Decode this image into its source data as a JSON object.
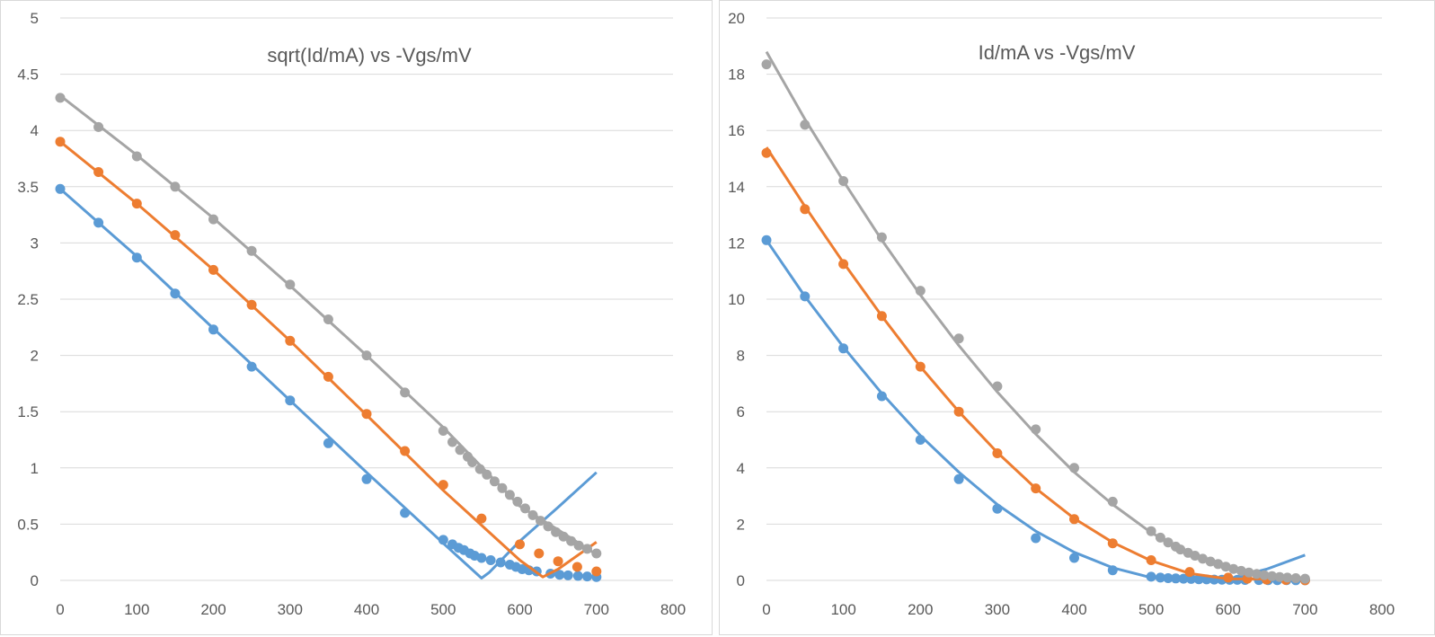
{
  "colors": {
    "blue": "#5b9bd5",
    "orange": "#ed7d31",
    "gray": "#a5a5a5",
    "grid": "#d9d9d9",
    "text": "#595959"
  },
  "chart_data": [
    {
      "type": "scatter",
      "title": "sqrt(Id/mA) vs -Vgs/mV",
      "xlim": [
        0,
        800
      ],
      "ylim": [
        0,
        5
      ],
      "x_ticks": [
        "0",
        "100",
        "200",
        "300",
        "400",
        "500",
        "600",
        "700",
        "800"
      ],
      "y_ticks": [
        "0",
        "0.5",
        "1",
        "1.5",
        "2",
        "2.5",
        "3",
        "3.5",
        "4",
        "4.5",
        "5"
      ],
      "grid": true,
      "legend": "none",
      "series": [
        {
          "color": "blue",
          "points": [
            [
              0,
              3.48
            ],
            [
              50,
              3.18
            ],
            [
              100,
              2.87
            ],
            [
              150,
              2.55
            ],
            [
              200,
              2.23
            ],
            [
              250,
              1.9
            ],
            [
              300,
              1.6
            ],
            [
              350,
              1.22
            ],
            [
              400,
              0.9
            ],
            [
              450,
              0.6
            ],
            [
              500,
              0.36
            ],
            [
              512,
              0.32
            ],
            [
              520,
              0.29
            ],
            [
              527,
              0.27
            ],
            [
              535,
              0.24
            ],
            [
              541,
              0.22
            ],
            [
              550,
              0.2
            ],
            [
              562,
              0.18
            ],
            [
              575,
              0.16
            ],
            [
              587,
              0.14
            ],
            [
              595,
              0.12
            ],
            [
              603,
              0.1
            ],
            [
              612,
              0.09
            ],
            [
              622,
              0.08
            ],
            [
              640,
              0.06
            ],
            [
              652,
              0.05
            ],
            [
              663,
              0.045
            ],
            [
              676,
              0.04
            ],
            [
              688,
              0.035
            ],
            [
              700,
              0.03
            ]
          ],
          "fit": [
            [
              0,
              3.48
            ],
            [
              100,
              2.88
            ],
            [
              200,
              2.24
            ],
            [
              300,
              1.6
            ],
            [
              400,
              0.96
            ],
            [
              500,
              0.33
            ],
            [
              550,
              0.02
            ],
            [
              560,
              0.07
            ],
            [
              600,
              0.35
            ],
            [
              650,
              0.65
            ],
            [
              700,
              0.96
            ]
          ]
        },
        {
          "color": "orange",
          "points": [
            [
              0,
              3.9
            ],
            [
              50,
              3.63
            ],
            [
              100,
              3.35
            ],
            [
              150,
              3.07
            ],
            [
              200,
              2.76
            ],
            [
              250,
              2.45
            ],
            [
              300,
              2.13
            ],
            [
              350,
              1.81
            ],
            [
              400,
              1.48
            ],
            [
              450,
              1.15
            ],
            [
              500,
              0.85
            ],
            [
              550,
              0.55
            ],
            [
              600,
              0.32
            ],
            [
              625,
              0.24
            ],
            [
              650,
              0.17
            ],
            [
              675,
              0.12
            ],
            [
              700,
              0.08
            ]
          ],
          "fit": [
            [
              0,
              3.9
            ],
            [
              100,
              3.35
            ],
            [
              200,
              2.76
            ],
            [
              300,
              2.13
            ],
            [
              400,
              1.47
            ],
            [
              500,
              0.8
            ],
            [
              600,
              0.18
            ],
            [
              630,
              0.03
            ],
            [
              650,
              0.1
            ],
            [
              700,
              0.34
            ]
          ]
        },
        {
          "color": "gray",
          "points": [
            [
              0,
              4.29
            ],
            [
              50,
              4.03
            ],
            [
              100,
              3.77
            ],
            [
              150,
              3.5
            ],
            [
              200,
              3.21
            ],
            [
              250,
              2.93
            ],
            [
              300,
              2.63
            ],
            [
              350,
              2.32
            ],
            [
              400,
              2.0
            ],
            [
              450,
              1.67
            ],
            [
              500,
              1.33
            ],
            [
              512,
              1.23
            ],
            [
              522,
              1.16
            ],
            [
              532,
              1.1
            ],
            [
              538,
              1.05
            ],
            [
              548,
              0.99
            ],
            [
              557,
              0.94
            ],
            [
              567,
              0.88
            ],
            [
              577,
              0.82
            ],
            [
              587,
              0.76
            ],
            [
              597,
              0.7
            ],
            [
              607,
              0.64
            ],
            [
              617,
              0.58
            ],
            [
              627,
              0.53
            ],
            [
              637,
              0.48
            ],
            [
              647,
              0.43
            ],
            [
              657,
              0.39
            ],
            [
              667,
              0.35
            ],
            [
              677,
              0.31
            ],
            [
              688,
              0.28
            ],
            [
              700,
              0.24
            ]
          ],
          "fit": [
            [
              0,
              4.31
            ],
            [
              100,
              3.78
            ],
            [
              200,
              3.22
            ],
            [
              300,
              2.62
            ],
            [
              400,
              2.0
            ],
            [
              500,
              1.36
            ],
            [
              600,
              0.66
            ],
            [
              650,
              0.45
            ],
            [
              700,
              0.23
            ]
          ]
        }
      ]
    },
    {
      "type": "scatter",
      "title": "Id/mA vs -Vgs/mV",
      "xlim": [
        0,
        800
      ],
      "ylim": [
        0,
        20
      ],
      "x_ticks": [
        "0",
        "100",
        "200",
        "300",
        "400",
        "500",
        "600",
        "700",
        "800"
      ],
      "y_ticks": [
        "0",
        "2",
        "4",
        "6",
        "8",
        "10",
        "12",
        "14",
        "16",
        "18",
        "20"
      ],
      "grid": true,
      "legend": "none",
      "series": [
        {
          "color": "blue",
          "points": [
            [
              0,
              12.1
            ],
            [
              50,
              10.1
            ],
            [
              100,
              8.25
            ],
            [
              150,
              6.55
            ],
            [
              200,
              5.0
            ],
            [
              250,
              3.6
            ],
            [
              300,
              2.55
            ],
            [
              350,
              1.5
            ],
            [
              400,
              0.8
            ],
            [
              450,
              0.36
            ],
            [
              500,
              0.13
            ],
            [
              512,
              0.1
            ],
            [
              522,
              0.08
            ],
            [
              532,
              0.07
            ],
            [
              542,
              0.06
            ],
            [
              552,
              0.05
            ],
            [
              562,
              0.04
            ],
            [
              572,
              0.035
            ],
            [
              582,
              0.03
            ],
            [
              592,
              0.025
            ],
            [
              602,
              0.02
            ],
            [
              612,
              0.018
            ],
            [
              622,
              0.015
            ],
            [
              640,
              0.012
            ],
            [
              652,
              0.01
            ],
            [
              664,
              0.009
            ],
            [
              676,
              0.008
            ],
            [
              688,
              0.006
            ],
            [
              700,
              0.005
            ]
          ],
          "fit": [
            [
              0,
              12.1
            ],
            [
              50,
              10.1
            ],
            [
              100,
              8.3
            ],
            [
              150,
              6.65
            ],
            [
              200,
              5.15
            ],
            [
              250,
              3.85
            ],
            [
              300,
              2.7
            ],
            [
              350,
              1.75
            ],
            [
              400,
              1.0
            ],
            [
              450,
              0.45
            ],
            [
              500,
              0.1
            ],
            [
              550,
              0.0
            ],
            [
              600,
              0.05
            ],
            [
              650,
              0.4
            ],
            [
              700,
              0.9
            ]
          ]
        },
        {
          "color": "orange",
          "points": [
            [
              0,
              15.2
            ],
            [
              50,
              13.2
            ],
            [
              100,
              11.25
            ],
            [
              150,
              9.4
            ],
            [
              200,
              7.6
            ],
            [
              250,
              6.0
            ],
            [
              300,
              4.52
            ],
            [
              350,
              3.27
            ],
            [
              400,
              2.18
            ],
            [
              450,
              1.32
            ],
            [
              500,
              0.72
            ],
            [
              550,
              0.3
            ],
            [
              600,
              0.1
            ],
            [
              625,
              0.06
            ],
            [
              650,
              0.03
            ],
            [
              675,
              0.015
            ],
            [
              700,
              0.006
            ]
          ],
          "fit": [
            [
              0,
              15.4
            ],
            [
              50,
              13.3
            ],
            [
              100,
              11.3
            ],
            [
              150,
              9.4
            ],
            [
              200,
              7.6
            ],
            [
              250,
              6.0
            ],
            [
              300,
              4.55
            ],
            [
              350,
              3.27
            ],
            [
              400,
              2.2
            ],
            [
              450,
              1.35
            ],
            [
              500,
              0.7
            ],
            [
              550,
              0.25
            ],
            [
              600,
              0.05
            ],
            [
              650,
              0.05
            ],
            [
              700,
              0.1
            ]
          ]
        },
        {
          "color": "gray",
          "points": [
            [
              0,
              18.35
            ],
            [
              50,
              16.2
            ],
            [
              100,
              14.2
            ],
            [
              150,
              12.2
            ],
            [
              200,
              10.3
            ],
            [
              250,
              8.6
            ],
            [
              300,
              6.9
            ],
            [
              350,
              5.37
            ],
            [
              400,
              4.0
            ],
            [
              450,
              2.8
            ],
            [
              500,
              1.75
            ],
            [
              512,
              1.52
            ],
            [
              522,
              1.35
            ],
            [
              532,
              1.2
            ],
            [
              538,
              1.1
            ],
            [
              548,
              0.98
            ],
            [
              557,
              0.88
            ],
            [
              567,
              0.77
            ],
            [
              577,
              0.67
            ],
            [
              587,
              0.58
            ],
            [
              597,
              0.49
            ],
            [
              607,
              0.41
            ],
            [
              617,
              0.34
            ],
            [
              627,
              0.28
            ],
            [
              637,
              0.23
            ],
            [
              647,
              0.19
            ],
            [
              657,
              0.15
            ],
            [
              667,
              0.12
            ],
            [
              677,
              0.1
            ],
            [
              688,
              0.08
            ],
            [
              700,
              0.06
            ]
          ],
          "fit": [
            [
              0,
              18.8
            ],
            [
              50,
              16.4
            ],
            [
              100,
              14.2
            ],
            [
              150,
              12.1
            ],
            [
              200,
              10.15
            ],
            [
              250,
              8.35
            ],
            [
              300,
              6.7
            ],
            [
              350,
              5.2
            ],
            [
              400,
              3.85
            ],
            [
              450,
              2.7
            ],
            [
              500,
              1.7
            ],
            [
              550,
              0.95
            ],
            [
              600,
              0.45
            ],
            [
              650,
              0.12
            ],
            [
              700,
              0.04
            ]
          ]
        }
      ]
    }
  ]
}
